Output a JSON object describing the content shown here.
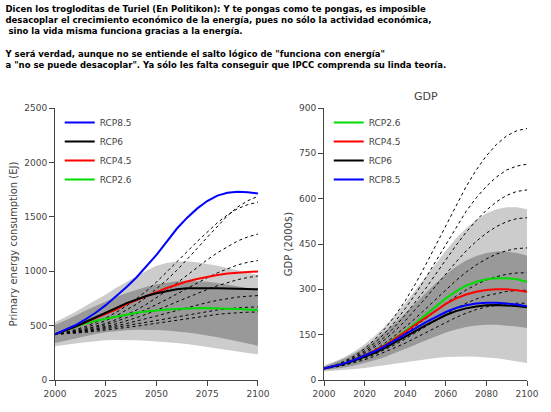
{
  "title": "Dicen los trogloditas de Turiel (En Politikon): Y te pongas como te pongas, es imposible\ndesacoplar el crecimiento económico de la energía, pues no sólo la actividad económica,\n sino la vida misma funciona gracias a la energía.\n\nY será verdad, aunque no se entiende el salto lógico de \"funciona con energía\"\na \"no se puede desacoplar\". Ya sólo les falta conseguir que IPCC comprenda su linda teoría.",
  "chart_data": [
    {
      "type": "line",
      "ylabel": "Primary energy consumption (EJ)",
      "x": [
        2000,
        2005,
        2010,
        2015,
        2020,
        2025,
        2030,
        2035,
        2040,
        2045,
        2050,
        2055,
        2060,
        2065,
        2070,
        2075,
        2080,
        2085,
        2090,
        2095,
        2100
      ],
      "xlim": [
        2000,
        2100
      ],
      "xticks": [
        2000,
        2025,
        2050,
        2075,
        2100
      ],
      "ylim": [
        0,
        2500
      ],
      "yticks": [
        0,
        500,
        1000,
        1500,
        2000,
        2500
      ],
      "grid": false,
      "legend": "upper left",
      "series": [
        {
          "type": "band",
          "color": "#cccccc",
          "low": [
            310,
            320,
            335,
            348,
            358,
            365,
            368,
            368,
            365,
            360,
            355,
            348,
            340,
            330,
            318,
            305,
            290,
            275,
            260,
            245,
            235
          ],
          "high": [
            530,
            575,
            625,
            680,
            730,
            785,
            845,
            900,
            955,
            1005,
            1050,
            1075,
            1090,
            1090,
            1082,
            1068,
            1050,
            1030,
            1010,
            988,
            965
          ]
        },
        {
          "type": "band",
          "color": "#999999",
          "low": [
            340,
            360,
            383,
            405,
            423,
            438,
            450,
            458,
            462,
            462,
            460,
            455,
            447,
            437,
            424,
            410,
            393,
            375,
            355,
            335,
            315
          ],
          "high": [
            505,
            545,
            590,
            638,
            680,
            722,
            762,
            798,
            830,
            858,
            880,
            897,
            908,
            912,
            910,
            903,
            892,
            878,
            862,
            845,
            828
          ]
        },
        {
          "type": "line",
          "color": "#000000",
          "line_style": "dotted",
          "values": [
            420,
            435,
            455,
            480,
            510,
            545,
            588,
            638,
            695,
            760,
            835,
            918,
            1008,
            1105,
            1208,
            1312,
            1415,
            1510,
            1590,
            1648,
            1688
          ]
        },
        {
          "type": "line",
          "color": "#000000",
          "line_style": "dotted",
          "values": [
            420,
            438,
            462,
            492,
            528,
            570,
            620,
            678,
            745,
            818,
            900,
            990,
            1082,
            1178,
            1272,
            1362,
            1445,
            1518,
            1575,
            1612,
            1635
          ]
        },
        {
          "type": "line",
          "color": "#000000",
          "line_style": "dotted",
          "values": [
            420,
            432,
            448,
            468,
            492,
            520,
            555,
            595,
            642,
            695,
            754,
            820,
            890,
            962,
            1035,
            1105,
            1170,
            1228,
            1278,
            1315,
            1342
          ]
        },
        {
          "type": "line",
          "color": "#000000",
          "line_style": "dotted",
          "values": [
            420,
            430,
            445,
            462,
            483,
            508,
            537,
            570,
            607,
            648,
            692,
            740,
            790,
            842,
            892,
            940,
            985,
            1025,
            1058,
            1082,
            1098
          ]
        },
        {
          "type": "line",
          "color": "#000000",
          "line_style": "dotted",
          "values": [
            420,
            428,
            440,
            455,
            472,
            492,
            515,
            542,
            572,
            605,
            640,
            678,
            718,
            758,
            796,
            832,
            866,
            896,
            922,
            942,
            956
          ]
        },
        {
          "type": "line",
          "color": "#000000",
          "line_style": "dotted",
          "values": [
            420,
            427,
            437,
            450,
            464,
            480,
            498,
            518,
            540,
            563,
            588,
            614,
            640,
            666,
            690,
            712,
            732,
            748,
            762,
            770,
            776
          ]
        },
        {
          "type": "line",
          "color": "#000000",
          "line_style": "dotted",
          "values": [
            420,
            426,
            434,
            445,
            457,
            470,
            484,
            499,
            515,
            531,
            548,
            566,
            584,
            601,
            617,
            631,
            644,
            655,
            663,
            669,
            672
          ]
        },
        {
          "type": "line",
          "color": "#000000",
          "line_style": "dotted",
          "values": [
            420,
            424,
            430,
            438,
            448,
            458,
            469,
            481,
            494,
            508,
            522,
            537,
            552,
            566,
            580,
            592,
            603,
            612,
            619,
            623,
            625
          ]
        },
        {
          "type": "line",
          "name": "RCP2.6",
          "color": "#00dd00",
          "line_style": "solid",
          "values": [
            420,
            453,
            487,
            520,
            545,
            565,
            580,
            600,
            618,
            630,
            640,
            648,
            652,
            658,
            660,
            662,
            660,
            657,
            652,
            648,
            643
          ]
        },
        {
          "type": "line",
          "name": "RCP4.5",
          "color": "#ff0000",
          "line_style": "solid",
          "values": [
            420,
            453,
            490,
            530,
            568,
            607,
            648,
            695,
            735,
            772,
            808,
            845,
            878,
            905,
            928,
            950,
            965,
            978,
            987,
            993,
            998
          ]
        },
        {
          "type": "line",
          "name": "RCP6",
          "color": "#000000",
          "line_style": "solid",
          "values": [
            420,
            453,
            490,
            533,
            573,
            618,
            660,
            705,
            742,
            772,
            798,
            820,
            835,
            843,
            845,
            845,
            843,
            841,
            838,
            836,
            833
          ]
        },
        {
          "type": "line",
          "name": "RCP8.5",
          "color": "#0000ff",
          "line_style": "solid",
          "values": [
            420,
            458,
            503,
            558,
            618,
            688,
            765,
            850,
            940,
            1040,
            1150,
            1270,
            1390,
            1490,
            1575,
            1645,
            1695,
            1720,
            1730,
            1725,
            1715
          ]
        }
      ]
    },
    {
      "type": "line",
      "title": "GDP",
      "ylabel": "GDP (2000$)",
      "x": [
        2000,
        2005,
        2010,
        2015,
        2020,
        2025,
        2030,
        2035,
        2040,
        2045,
        2050,
        2055,
        2060,
        2065,
        2070,
        2075,
        2080,
        2085,
        2090,
        2095,
        2100
      ],
      "xlim": [
        2000,
        2100
      ],
      "xticks": [
        2000,
        2020,
        2040,
        2060,
        2080,
        2100
      ],
      "ylim": [
        0,
        900
      ],
      "yticks": [
        0,
        150,
        300,
        450,
        600,
        750,
        900
      ],
      "grid": false,
      "legend": "upper left",
      "series": [
        {
          "type": "band",
          "color": "#cccccc",
          "low": [
            28,
            30,
            33,
            36,
            40,
            44,
            49,
            54,
            59,
            64,
            69,
            73,
            76,
            78,
            78,
            77,
            75,
            72,
            67,
            62,
            56
          ],
          "high": [
            48,
            60,
            75,
            95,
            118,
            146,
            178,
            214,
            254,
            296,
            340,
            384,
            428,
            468,
            502,
            530,
            552,
            565,
            572,
            572,
            565
          ]
        },
        {
          "type": "band",
          "color": "#999999",
          "low": [
            32,
            36,
            41,
            48,
            56,
            65,
            76,
            89,
            103,
            117,
            131,
            145,
            157,
            167,
            175,
            180,
            183,
            183,
            181,
            177,
            172
          ],
          "high": [
            45,
            57,
            71,
            88,
            108,
            132,
            159,
            189,
            221,
            255,
            288,
            320,
            349,
            375,
            395,
            410,
            420,
            425,
            425,
            420,
            412
          ]
        },
        {
          "type": "line",
          "color": "#000000",
          "line_style": "dotted",
          "values": [
            38,
            48,
            62,
            80,
            104,
            134,
            170,
            213,
            262,
            318,
            380,
            445,
            512,
            578,
            640,
            695,
            742,
            780,
            808,
            825,
            832
          ]
        },
        {
          "type": "line",
          "color": "#000000",
          "line_style": "dotted",
          "values": [
            38,
            47,
            59,
            76,
            97,
            123,
            155,
            193,
            236,
            284,
            337,
            393,
            450,
            506,
            558,
            603,
            641,
            672,
            695,
            708,
            714
          ]
        },
        {
          "type": "line",
          "color": "#000000",
          "line_style": "dotted",
          "values": [
            38,
            46,
            58,
            73,
            92,
            115,
            143,
            177,
            215,
            257,
            302,
            350,
            398,
            445,
            489,
            528,
            562,
            590,
            611,
            624,
            629
          ]
        },
        {
          "type": "line",
          "color": "#000000",
          "line_style": "dotted",
          "values": [
            38,
            46,
            57,
            71,
            88,
            109,
            134,
            163,
            196,
            232,
            271,
            311,
            351,
            390,
            427,
            459,
            486,
            508,
            524,
            534,
            537
          ]
        },
        {
          "type": "line",
          "color": "#000000",
          "line_style": "dotted",
          "values": [
            38,
            45,
            55,
            68,
            83,
            101,
            122,
            147,
            174,
            204,
            235,
            267,
            299,
            329,
            357,
            381,
            401,
            417,
            428,
            435,
            437
          ]
        },
        {
          "type": "line",
          "color": "#000000",
          "line_style": "dotted",
          "values": [
            38,
            44,
            53,
            64,
            77,
            92,
            110,
            130,
            153,
            177,
            202,
            228,
            253,
            277,
            298,
            316,
            331,
            342,
            350,
            354,
            355
          ]
        },
        {
          "type": "line",
          "color": "#000000",
          "line_style": "dotted",
          "values": [
            38,
            43,
            51,
            61,
            72,
            85,
            100,
            117,
            136,
            156,
            177,
            198,
            218,
            237,
            254,
            268,
            279,
            287,
            293,
            296,
            297
          ]
        },
        {
          "type": "line",
          "color": "#000000",
          "line_style": "dotted",
          "values": [
            38,
            42,
            49,
            57,
            67,
            79,
            92,
            107,
            122,
            139,
            157,
            174,
            191,
            207,
            221,
            233,
            242,
            248,
            252,
            254,
            254
          ]
        },
        {
          "type": "line",
          "name": "RCP2.6",
          "color": "#00dd00",
          "line_style": "solid",
          "values": [
            38,
            46,
            55,
            67,
            81,
            97,
            116,
            138,
            162,
            188,
            215,
            243,
            270,
            293,
            312,
            325,
            333,
            337,
            337,
            333,
            325
          ]
        },
        {
          "type": "line",
          "name": "RCP4.5",
          "color": "#ff0000",
          "line_style": "solid",
          "values": [
            38,
            46,
            55,
            67,
            81,
            97,
            115,
            136,
            159,
            183,
            207,
            230,
            252,
            270,
            283,
            292,
            298,
            300,
            300,
            297,
            292
          ]
        },
        {
          "type": "line",
          "name": "RCP6",
          "color": "#000000",
          "line_style": "solid",
          "values": [
            38,
            45,
            54,
            64,
            76,
            90,
            106,
            124,
            143,
            162,
            181,
            199,
            215,
            228,
            237,
            243,
            247,
            248,
            247,
            245,
            241
          ]
        },
        {
          "type": "line",
          "name": "RCP8.5",
          "color": "#0000ff",
          "line_style": "solid",
          "values": [
            38,
            46,
            55,
            67,
            80,
            95,
            112,
            131,
            151,
            171,
            191,
            209,
            225,
            238,
            247,
            253,
            256,
            256,
            254,
            250,
            244
          ]
        }
      ]
    }
  ]
}
